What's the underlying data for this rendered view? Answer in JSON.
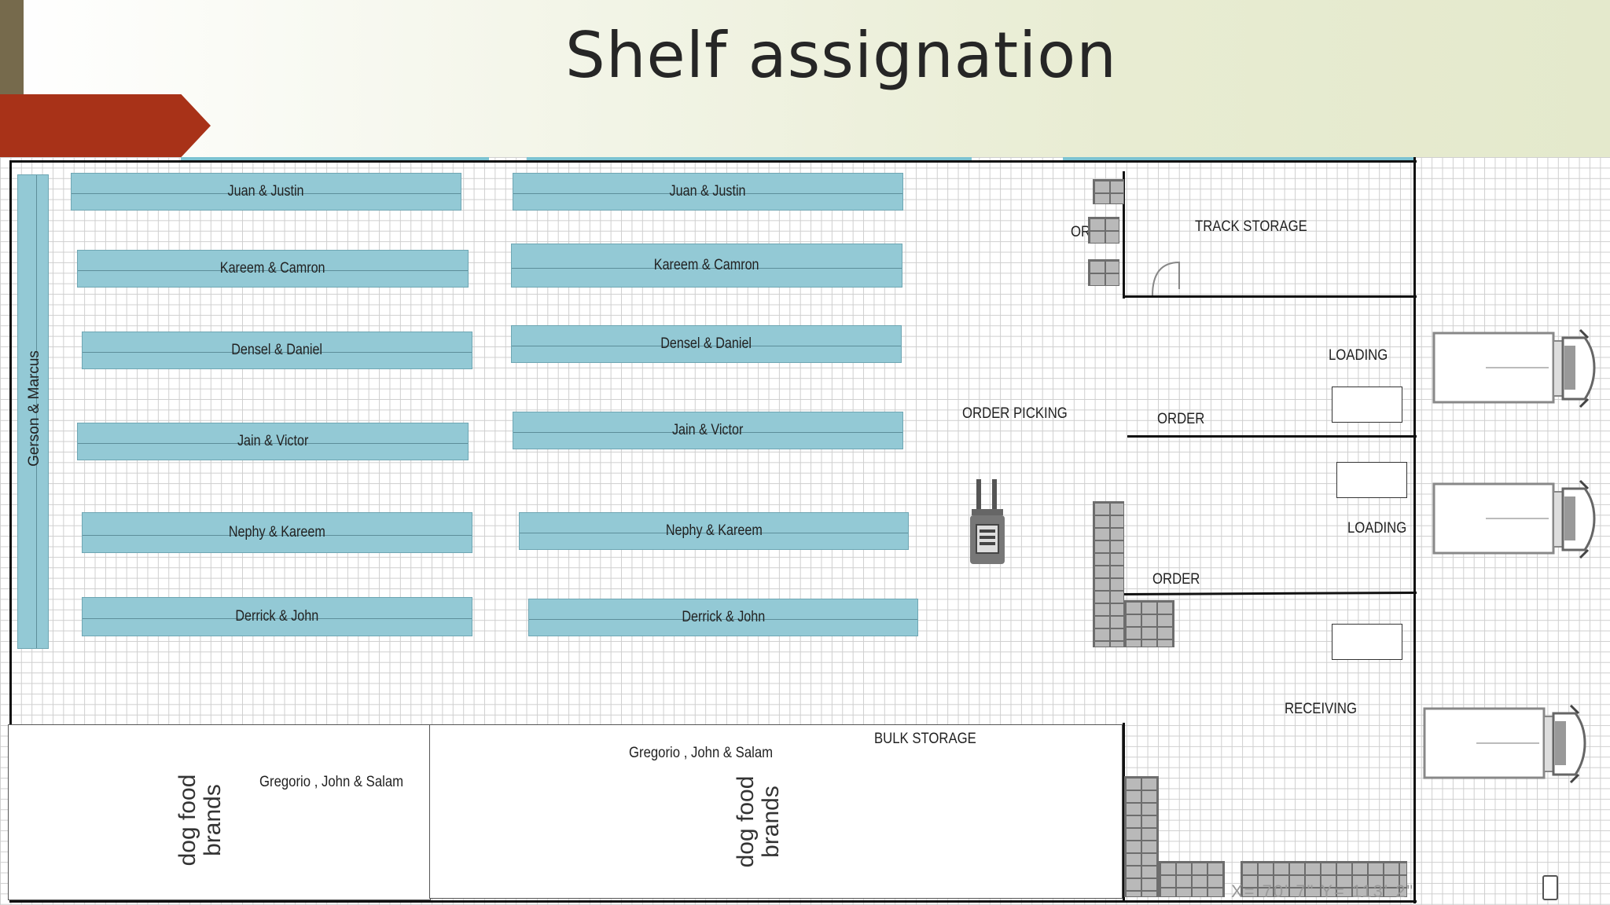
{
  "slide": {
    "title": "Shelf assignation"
  },
  "floorplan": {
    "shelves_left": [
      "Juan & Justin",
      "Kareem & Camron",
      "Densel & Daniel",
      "Jain & Victor",
      "Nephy & Kareem",
      "Derrick & John"
    ],
    "shelves_right": [
      "Juan & Justin",
      "Kareem & Camron",
      "Densel & Daniel",
      "Jain & Victor",
      "Nephy & Kareem",
      "Derrick & John"
    ],
    "vertical_shelf": "Gerson & Marcus",
    "areas": {
      "order_picking": "ORDER PICKING",
      "order_top": "ORDER",
      "track_storage": "TRACK STORAGE",
      "loading_1": "LOADING",
      "order_1": "ORDER",
      "loading_2": "LOADING",
      "order_2": "ORDER",
      "receiving": "RECEIVING",
      "bulk_storage": "BULK STORAGE"
    },
    "bulk": {
      "left_label": "Gregorio , John & Salam",
      "right_label": "Gregorio , John & Salam",
      "dog_food_1": "dog food brands",
      "dog_food_2": "dog food brands"
    },
    "coordinates": "X= 70' 7\"   Y= 113' 2\""
  },
  "icons": [
    "forklift-icon",
    "truck-icon",
    "pallet-icon"
  ]
}
